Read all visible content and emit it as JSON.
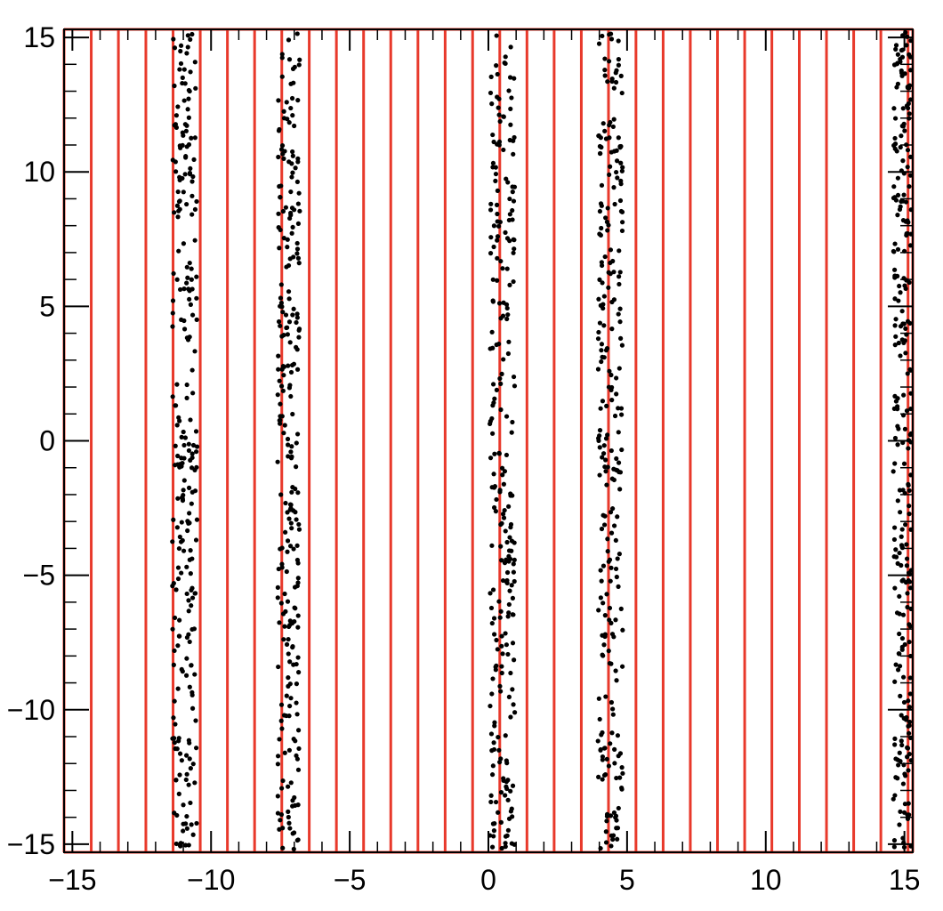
{
  "chart_data": {
    "type": "scatter",
    "title": "",
    "xlabel": "",
    "ylabel": "",
    "xlim": [
      -15.3,
      15.3
    ],
    "ylim": [
      -15.3,
      15.3
    ],
    "x_ticks": [
      -15,
      -10,
      -5,
      0,
      5,
      10,
      15
    ],
    "y_ticks": [
      -15,
      -10,
      -5,
      0,
      5,
      10,
      15
    ],
    "x_tick_labels": [
      "−15",
      "−10",
      "−5",
      "0",
      "5",
      "10",
      "15"
    ],
    "y_tick_labels": [
      "−15",
      "−10",
      "−5",
      "0",
      "5",
      "10",
      "15"
    ],
    "grid": false,
    "legend": "none",
    "cell_boundaries_x": [
      -15.3,
      -14.32,
      -13.34,
      -12.35,
      -11.37,
      -10.39,
      -9.41,
      -8.43,
      -7.45,
      -6.46,
      -5.48,
      -4.5,
      -3.52,
      -2.54,
      -1.56,
      -0.57,
      0.41,
      1.39,
      2.37,
      3.35,
      4.33,
      5.32,
      6.3,
      7.28,
      8.26,
      9.24,
      10.22,
      11.21,
      12.19,
      13.17,
      14.15,
      15.13,
      15.3
    ],
    "series": [
      {
        "points_per_band": 260,
        "bands_x": [
          [
            -11.4,
            -10.5
          ],
          [
            -7.6,
            -6.8
          ],
          [
            0.05,
            0.95
          ],
          [
            3.95,
            4.85
          ],
          [
            14.6,
            15.25
          ]
        ],
        "color": "#000000"
      }
    ],
    "colors": {
      "cell_outline": "#e8392b",
      "points": "#000000",
      "axes": "#000000"
    }
  }
}
